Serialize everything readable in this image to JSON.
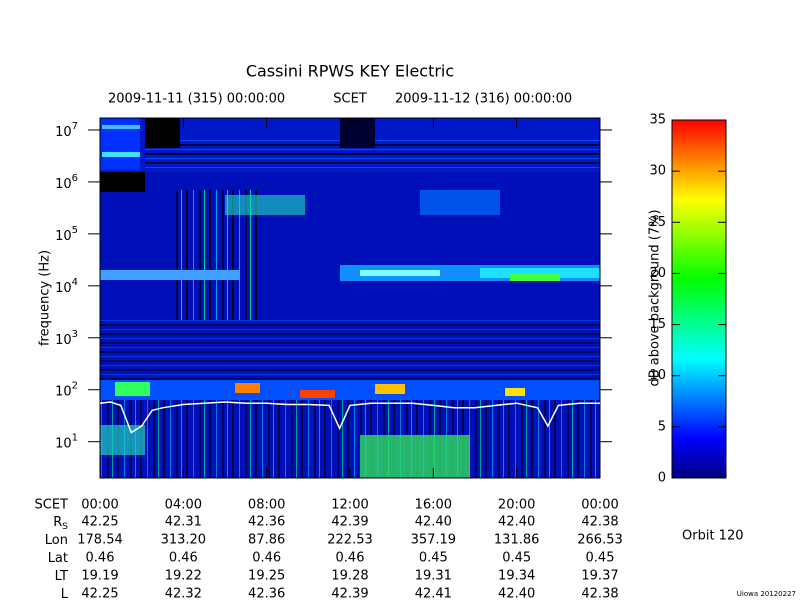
{
  "chart_data": {
    "type": "spectrogram",
    "title": "Cassini RPWS KEY Electric",
    "header": {
      "start": "2009-11-11 (315) 00:00:00",
      "center": "SCET",
      "end": "2009-11-12 (316) 00:00:00"
    },
    "y_label": "frequency (Hz)",
    "log_y": true,
    "ylim": [
      2,
      17000000
    ],
    "yticks": [
      {
        "value": 10,
        "label": "10",
        "power": "1"
      },
      {
        "value": 100,
        "label": "10",
        "power": "2"
      },
      {
        "value": 1000,
        "label": "10",
        "power": "3"
      },
      {
        "value": 10000,
        "label": "10",
        "power": "4"
      },
      {
        "value": 100000,
        "label": "10",
        "power": "5"
      },
      {
        "value": 1000000,
        "label": "10",
        "power": "6"
      },
      {
        "value": 10000000,
        "label": "10",
        "power": "7"
      }
    ],
    "x_label": "SCET",
    "xlim": [
      0,
      24
    ],
    "xticks": [
      {
        "value": 0,
        "label": "00:00"
      },
      {
        "value": 4,
        "label": "04:00"
      },
      {
        "value": 8,
        "label": "08:00"
      },
      {
        "value": 12,
        "label": "12:00"
      },
      {
        "value": 16,
        "label": "16:00"
      },
      {
        "value": 20,
        "label": "20:00"
      },
      {
        "value": 24,
        "label": "00:00"
      }
    ],
    "line": {
      "color": "#ffffff",
      "x": [
        0,
        0.5,
        1,
        1.5,
        2,
        2.5,
        3,
        4,
        5,
        6,
        7,
        8,
        9,
        10,
        11,
        11.5,
        12,
        13,
        14,
        15,
        16,
        17,
        18,
        19,
        20,
        21,
        21.5,
        22,
        23,
        24
      ],
      "values": [
        55,
        58,
        50,
        15,
        20,
        40,
        45,
        52,
        55,
        58,
        55,
        55,
        52,
        52,
        50,
        18,
        50,
        55,
        55,
        55,
        50,
        45,
        45,
        50,
        55,
        45,
        20,
        50,
        55,
        55
      ]
    },
    "colorbar": {
      "label": "dB above background (7%)",
      "ylim": [
        0,
        35
      ],
      "yticks": [
        0,
        5,
        10,
        15,
        20,
        25,
        30,
        35
      ],
      "colors": [
        "#000080",
        "#0000ff",
        "#0080ff",
        "#00ffff",
        "#00ff80",
        "#00ff00",
        "#80ff00",
        "#ffff00",
        "#ff8000",
        "#ff0000"
      ]
    }
  },
  "ephemeris": {
    "rows": [
      {
        "label": "R",
        "subscript": "S",
        "values": [
          "42.25",
          "42.31",
          "42.36",
          "42.39",
          "42.40",
          "42.40",
          "42.38"
        ]
      },
      {
        "label": "Lon",
        "values": [
          "178.54",
          "313.20",
          "87.86",
          "222.53",
          "357.19",
          "131.86",
          "266.53"
        ]
      },
      {
        "label": "Lat",
        "values": [
          "0.46",
          "0.46",
          "0.46",
          "0.46",
          "0.45",
          "0.45",
          "0.45"
        ]
      },
      {
        "label": "LT",
        "values": [
          "19.19",
          "19.22",
          "19.25",
          "19.28",
          "19.31",
          "19.34",
          "19.37"
        ]
      },
      {
        "label": "L",
        "values": [
          "42.25",
          "42.32",
          "42.36",
          "42.39",
          "42.41",
          "42.40",
          "42.38"
        ]
      }
    ]
  },
  "orbit": "Orbit 120",
  "credit": "Uiowa 20120227"
}
